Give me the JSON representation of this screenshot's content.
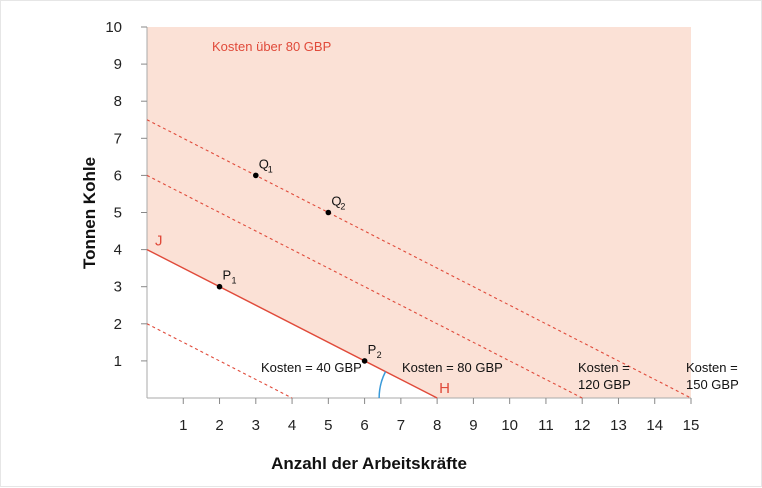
{
  "chart_data": {
    "type": "line",
    "xlabel": "Anzahl der Arbeitskräfte",
    "ylabel": "Tonnen Kohle",
    "xlim": [
      0,
      15
    ],
    "ylim": [
      0,
      10
    ],
    "xticks": [
      1,
      2,
      3,
      4,
      5,
      6,
      7,
      8,
      9,
      10,
      11,
      12,
      13,
      14,
      15
    ],
    "yticks": [
      1,
      2,
      3,
      4,
      5,
      6,
      7,
      8,
      9,
      10
    ],
    "region_label": "Kosten über 80 GBP",
    "colors": {
      "region": "#fbe1d6",
      "line": "#e04a3a",
      "point": "#000000",
      "angle": "#3a9ad9"
    },
    "series": [
      {
        "label_lines": [
          "Kosten = 40 GBP"
        ],
        "style": "dashed",
        "x": [
          0,
          4
        ],
        "y": [
          2,
          0
        ]
      },
      {
        "label_lines": [
          "Kosten = 80 GBP"
        ],
        "style": "solid",
        "x": [
          0,
          8
        ],
        "y": [
          4,
          0
        ]
      },
      {
        "label_lines": [
          "Kosten =",
          "120 GBP"
        ],
        "style": "dashed",
        "x": [
          0,
          12
        ],
        "y": [
          6,
          0
        ]
      },
      {
        "label_lines": [
          "Kosten =",
          "150 GBP"
        ],
        "style": "dashed",
        "x": [
          0,
          15
        ],
        "y": [
          7.5,
          0
        ]
      }
    ],
    "line_end_labels": {
      "start": "J",
      "end": "H"
    },
    "points": [
      {
        "name": "P",
        "sub": "1",
        "x": 2,
        "y": 3
      },
      {
        "name": "P",
        "sub": "2",
        "x": 6,
        "y": 1
      },
      {
        "name": "Q",
        "sub": "1",
        "x": 3,
        "y": 6
      },
      {
        "name": "Q",
        "sub": "2",
        "x": 5,
        "y": 5
      }
    ]
  }
}
